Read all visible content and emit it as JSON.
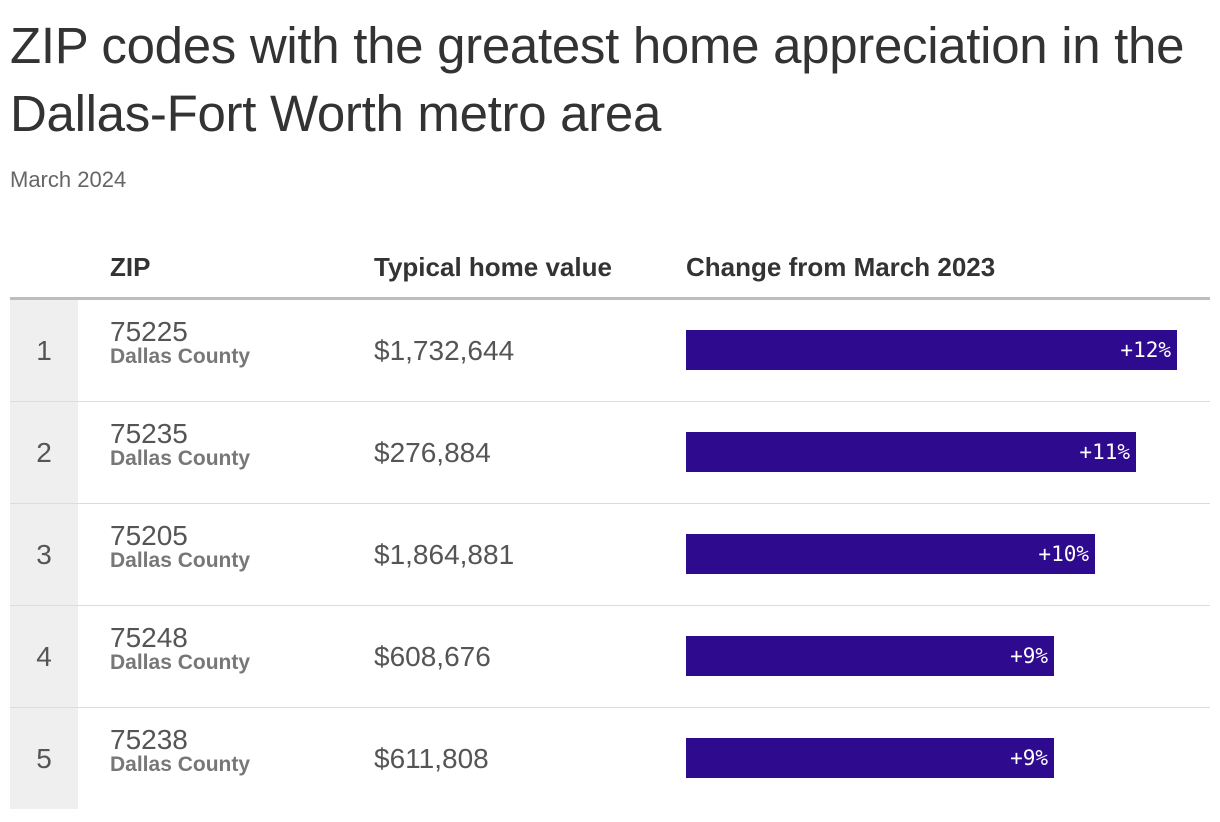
{
  "title": "ZIP codes with the greatest home appreciation in the Dallas-Fort Worth metro area",
  "subtitle": "March 2024",
  "colors": {
    "bar": "#2e0b8e",
    "rank_bg": "#efefef",
    "text": "#333333"
  },
  "table": {
    "headers": {
      "zip": "ZIP",
      "value": "Typical home value",
      "change": "Change from March 2023"
    }
  },
  "chart_data": {
    "type": "bar",
    "title": "ZIP codes with the greatest home appreciation in the Dallas-Fort Worth metro area",
    "subtitle": "March 2024",
    "xlabel": "Change from March 2023",
    "ylabel": "ZIP",
    "xlim": [
      0,
      12.8
    ],
    "categories": [
      "75225",
      "75235",
      "75205",
      "75248",
      "75238"
    ],
    "values": [
      12,
      11,
      10,
      9,
      9
    ],
    "rows": [
      {
        "rank": "1",
        "zip": "75225",
        "county": "Dallas County",
        "value": "$1,732,644",
        "change": 12,
        "change_label": "+12%"
      },
      {
        "rank": "2",
        "zip": "75235",
        "county": "Dallas County",
        "value": "$276,884",
        "change": 11,
        "change_label": "+11%"
      },
      {
        "rank": "3",
        "zip": "75205",
        "county": "Dallas County",
        "value": "$1,864,881",
        "change": 10,
        "change_label": "+10%"
      },
      {
        "rank": "4",
        "zip": "75248",
        "county": "Dallas County",
        "value": "$608,676",
        "change": 9,
        "change_label": "+9%"
      },
      {
        "rank": "5",
        "zip": "75238",
        "county": "Dallas County",
        "value": "$611,808",
        "change": 9,
        "change_label": "+9%"
      }
    ]
  }
}
